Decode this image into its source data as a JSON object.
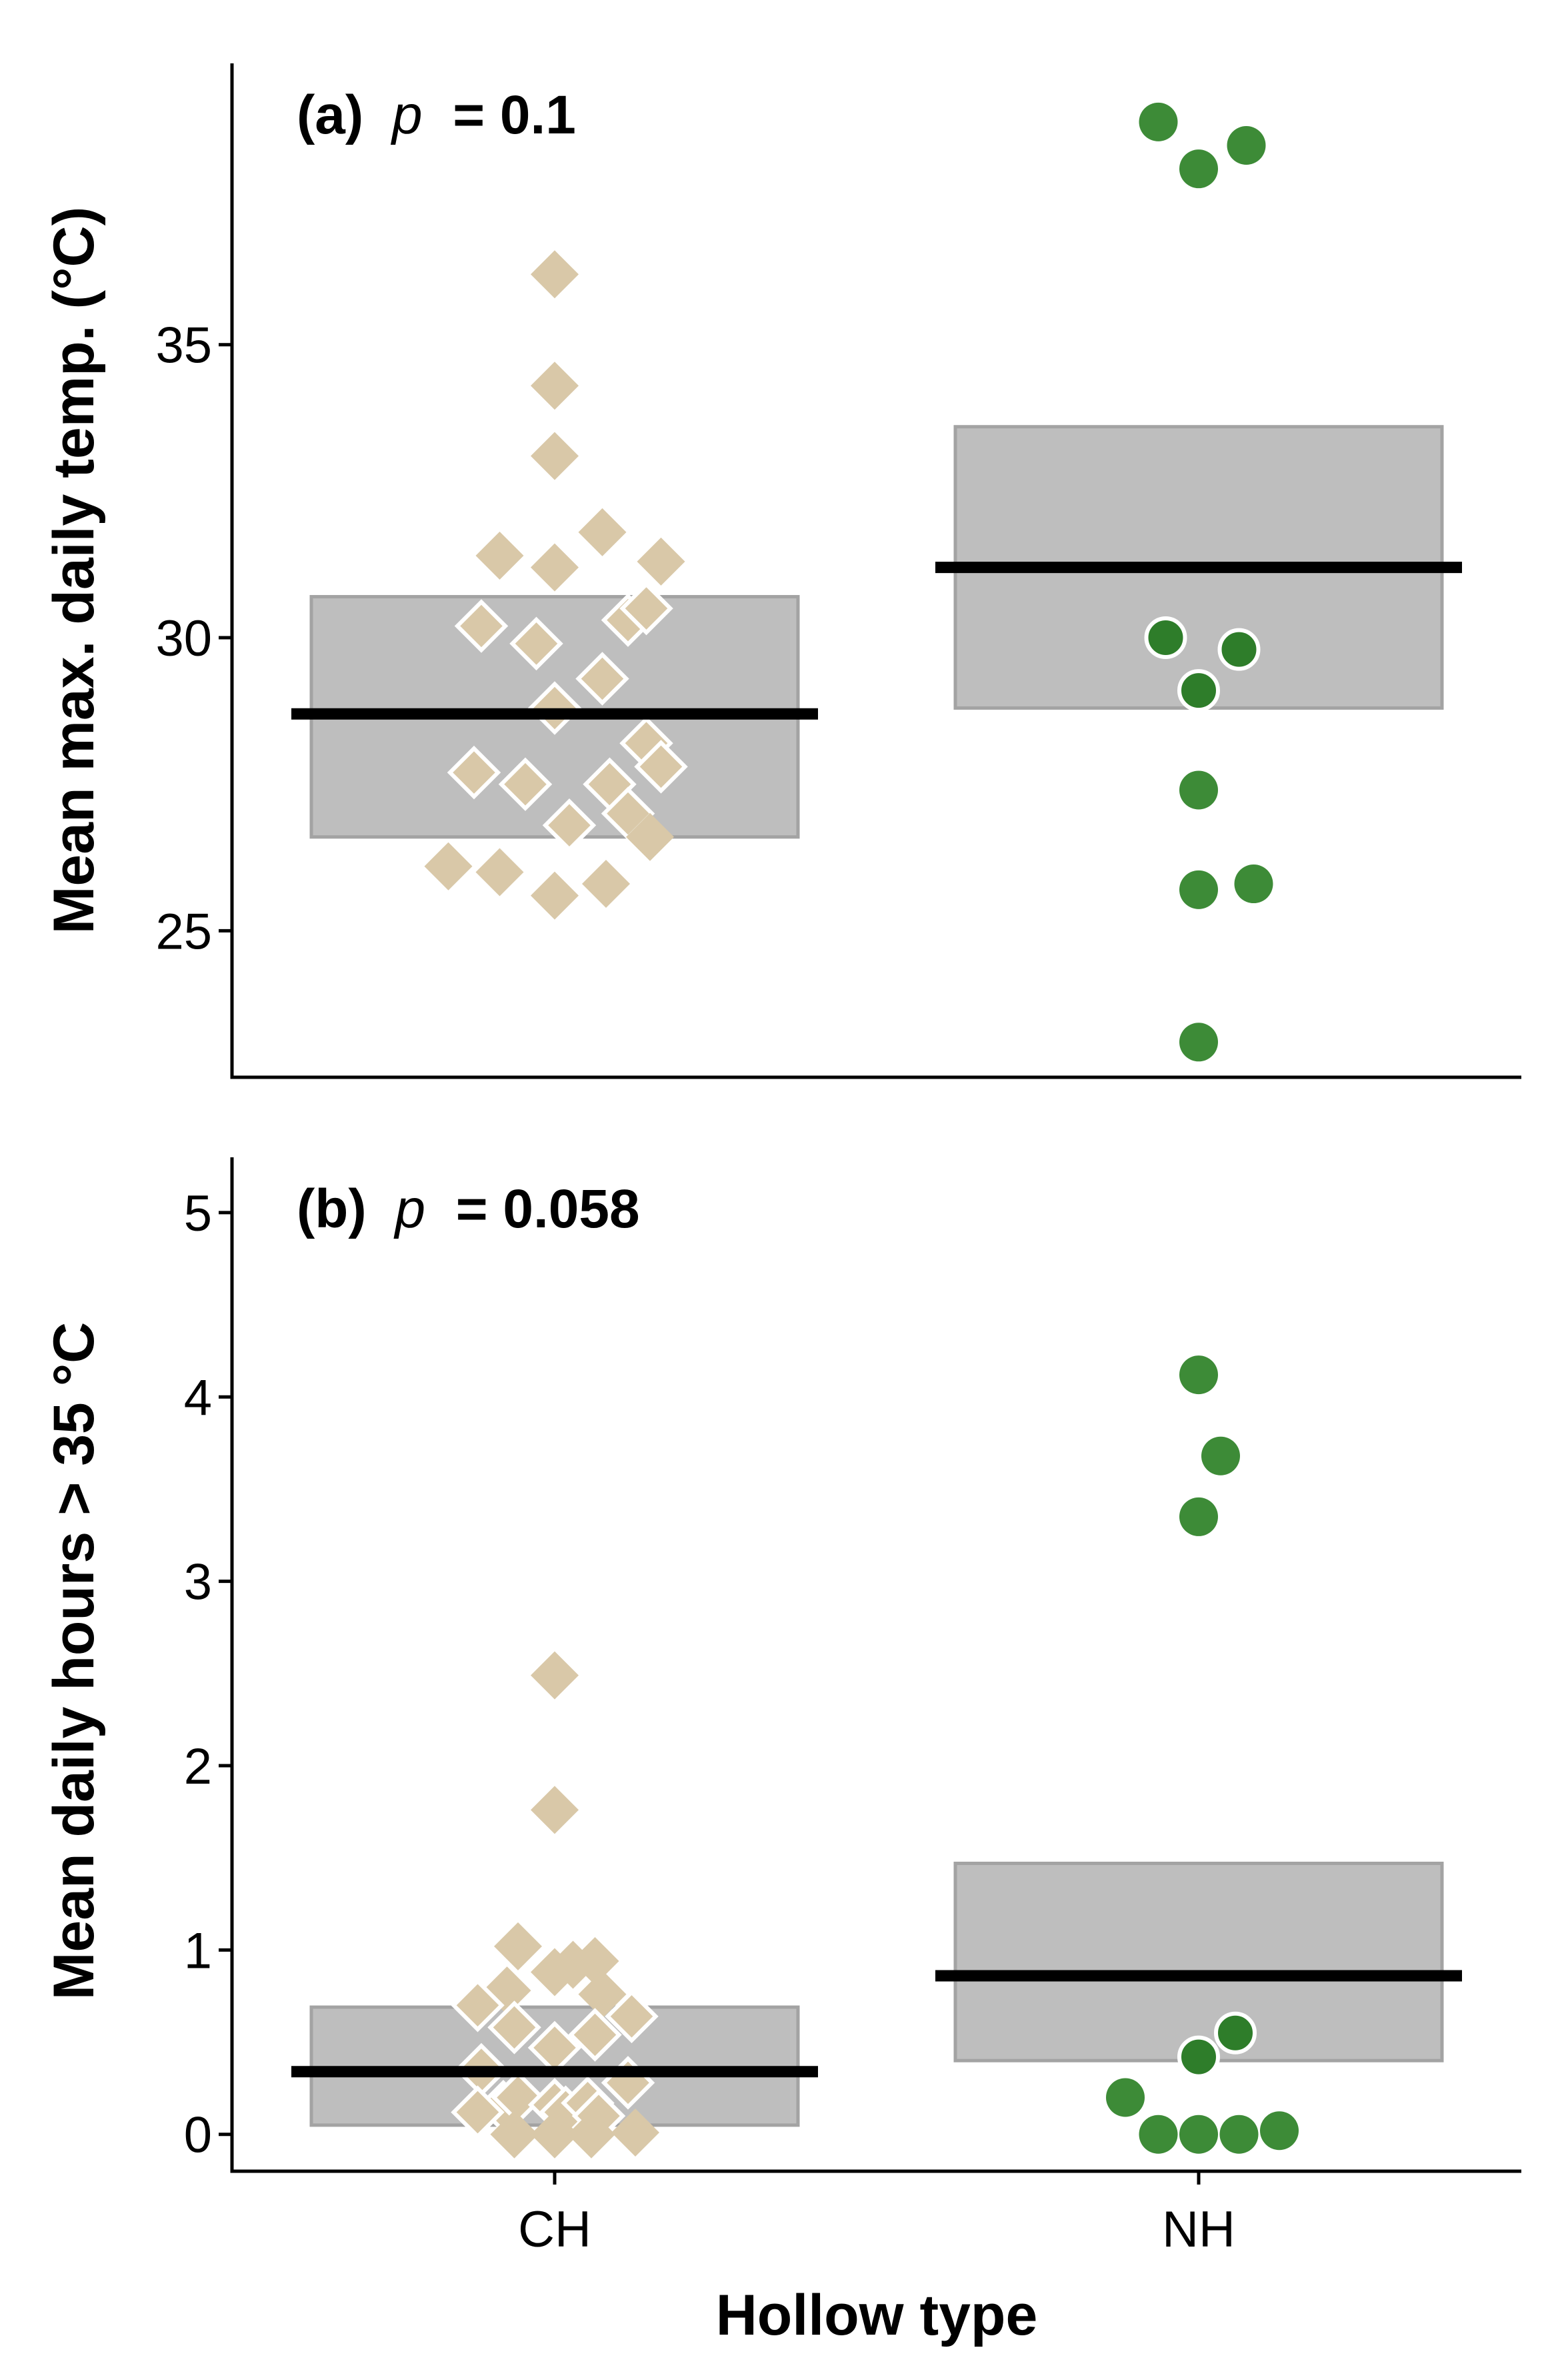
{
  "colors": {
    "ch_point": "#d9c8a8",
    "nh_point": "#3d8b37",
    "nh_point_dark": "#2e7d2a",
    "box_fill": "#bebebe",
    "box_stroke": "#a3a3a3"
  },
  "x_axis": {
    "title": "Hollow type",
    "categories": [
      "CH",
      "NH"
    ]
  },
  "chart_data": [
    {
      "type": "scatter",
      "panel": "a",
      "label_prefix": "(a)",
      "p_symbol": "p",
      "p_text": " = 0.1",
      "ylabel": "Mean max. daily temp. (°C)",
      "ylim": [
        22.5,
        39.8
      ],
      "yticks": [
        25,
        30,
        35
      ],
      "categories": [
        "CH",
        "NH"
      ],
      "summary": [
        {
          "category": "CH",
          "mean": 28.7,
          "ci_low": 26.6,
          "ci_high": 30.7
        },
        {
          "category": "NH",
          "mean": 31.2,
          "ci_low": 28.8,
          "ci_high": 33.6
        }
      ],
      "series": [
        {
          "name": "CH",
          "marker": "diamond",
          "points": [
            {
              "offset": 0.0,
              "y": 36.2
            },
            {
              "offset": 0.0,
              "y": 34.3
            },
            {
              "offset": 0.0,
              "y": 33.1
            },
            {
              "offset": -0.15,
              "y": 31.4
            },
            {
              "offset": 0.0,
              "y": 31.2
            },
            {
              "offset": 0.13,
              "y": 31.8
            },
            {
              "offset": 0.29,
              "y": 31.3
            },
            {
              "offset": -0.2,
              "y": 30.2,
              "outline": true
            },
            {
              "offset": -0.05,
              "y": 29.9,
              "outline": true
            },
            {
              "offset": 0.2,
              "y": 30.3,
              "outline": true
            },
            {
              "offset": 0.25,
              "y": 30.5,
              "outline": true
            },
            {
              "offset": 0.13,
              "y": 29.3,
              "outline": true
            },
            {
              "offset": 0.0,
              "y": 28.8,
              "outline": true
            },
            {
              "offset": 0.25,
              "y": 28.2,
              "outline": true
            },
            {
              "offset": -0.22,
              "y": 27.7,
              "outline": true
            },
            {
              "offset": -0.08,
              "y": 27.5,
              "outline": true
            },
            {
              "offset": 0.15,
              "y": 27.5,
              "outline": true
            },
            {
              "offset": 0.29,
              "y": 27.8,
              "outline": true
            },
            {
              "offset": 0.04,
              "y": 26.8,
              "outline": true
            },
            {
              "offset": 0.2,
              "y": 27.0,
              "outline": true
            },
            {
              "offset": 0.26,
              "y": 26.6
            },
            {
              "offset": -0.29,
              "y": 26.1
            },
            {
              "offset": -0.15,
              "y": 26.0
            },
            {
              "offset": 0.0,
              "y": 25.6
            },
            {
              "offset": 0.14,
              "y": 25.8
            }
          ]
        },
        {
          "name": "NH",
          "marker": "circle",
          "points": [
            {
              "offset": -0.11,
              "y": 38.8
            },
            {
              "offset": 0.0,
              "y": 38.0
            },
            {
              "offset": 0.13,
              "y": 38.4
            },
            {
              "offset": -0.09,
              "y": 30.0,
              "outline": true
            },
            {
              "offset": 0.11,
              "y": 29.8,
              "outline": true
            },
            {
              "offset": 0.0,
              "y": 29.1,
              "outline": true
            },
            {
              "offset": 0.0,
              "y": 27.4
            },
            {
              "offset": 0.0,
              "y": 25.7
            },
            {
              "offset": 0.15,
              "y": 25.8
            },
            {
              "offset": 0.0,
              "y": 23.1
            }
          ]
        }
      ]
    },
    {
      "type": "scatter",
      "panel": "b",
      "label_prefix": "(b)",
      "p_symbol": "p",
      "p_text": " = 0.058",
      "ylabel": "Mean daily hours > 35 °C",
      "ylim": [
        -0.2,
        5.3
      ],
      "yticks": [
        0,
        1,
        2,
        3,
        4,
        5
      ],
      "categories": [
        "CH",
        "NH"
      ],
      "summary": [
        {
          "category": "CH",
          "mean": 0.34,
          "ci_low": 0.05,
          "ci_high": 0.69
        },
        {
          "category": "NH",
          "mean": 0.86,
          "ci_low": 0.4,
          "ci_high": 1.47
        }
      ],
      "series": [
        {
          "name": "CH",
          "marker": "diamond",
          "points": [
            {
              "offset": 0.0,
              "y": 2.49
            },
            {
              "offset": 0.0,
              "y": 1.76
            },
            {
              "offset": -0.1,
              "y": 1.02
            },
            {
              "offset": 0.05,
              "y": 0.92
            },
            {
              "offset": 0.0,
              "y": 0.88
            },
            {
              "offset": 0.11,
              "y": 0.94
            },
            {
              "offset": -0.13,
              "y": 0.78
            },
            {
              "offset": 0.13,
              "y": 0.76
            },
            {
              "offset": -0.21,
              "y": 0.7,
              "outline": true
            },
            {
              "offset": -0.11,
              "y": 0.58,
              "outline": true
            },
            {
              "offset": 0.11,
              "y": 0.54,
              "outline": true
            },
            {
              "offset": 0.0,
              "y": 0.47,
              "outline": true
            },
            {
              "offset": 0.21,
              "y": 0.64,
              "outline": true
            },
            {
              "offset": -0.2,
              "y": 0.35,
              "outline": true
            },
            {
              "offset": 0.2,
              "y": 0.28,
              "outline": true
            },
            {
              "offset": -0.14,
              "y": 0.15,
              "outline": true
            },
            {
              "offset": -0.1,
              "y": 0.2,
              "outline": true
            },
            {
              "offset": 0.0,
              "y": 0.16,
              "outline": true
            },
            {
              "offset": 0.03,
              "y": 0.12,
              "outline": true
            },
            {
              "offset": 0.09,
              "y": 0.17,
              "outline": true
            },
            {
              "offset": 0.12,
              "y": 0.1,
              "outline": true
            },
            {
              "offset": -0.21,
              "y": 0.12,
              "outline": true
            },
            {
              "offset": -0.11,
              "y": 0.0
            },
            {
              "offset": 0.0,
              "y": 0.0
            },
            {
              "offset": 0.1,
              "y": 0.0
            },
            {
              "offset": 0.22,
              "y": 0.01
            }
          ]
        },
        {
          "name": "NH",
          "marker": "circle",
          "points": [
            {
              "offset": 0.0,
              "y": 4.12
            },
            {
              "offset": 0.06,
              "y": 3.68
            },
            {
              "offset": 0.0,
              "y": 3.35
            },
            {
              "offset": 0.1,
              "y": 0.55,
              "outline": true
            },
            {
              "offset": 0.0,
              "y": 0.42,
              "outline": true
            },
            {
              "offset": -0.2,
              "y": 0.2
            },
            {
              "offset": -0.11,
              "y": 0.0
            },
            {
              "offset": 0.0,
              "y": 0.0
            },
            {
              "offset": 0.11,
              "y": 0.0
            },
            {
              "offset": 0.22,
              "y": 0.02
            }
          ]
        }
      ]
    }
  ]
}
